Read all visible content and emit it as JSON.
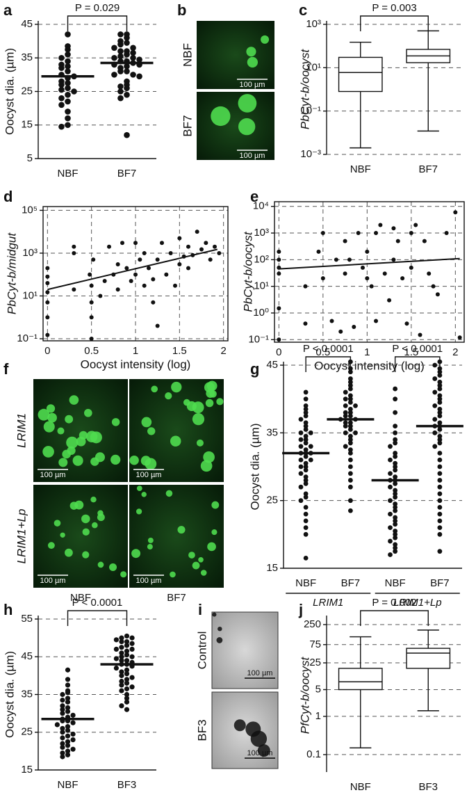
{
  "chart_data": [
    {
      "type": "dot",
      "panel": "a",
      "ylabel": "Oocyst dia. (µm)",
      "categories": [
        "NBF",
        "BF7"
      ],
      "values": [
        [
          42,
          38.5,
          37.5,
          36,
          35,
          34,
          33,
          32.5,
          32,
          31,
          30,
          29.5,
          29,
          28,
          27.5,
          27,
          26,
          25.5,
          25,
          24,
          23,
          22,
          21,
          19,
          17,
          15,
          14.5
        ],
        [
          42,
          42,
          41,
          40,
          39.5,
          39,
          38,
          38,
          37,
          37,
          36.5,
          36,
          35.5,
          35,
          35,
          34.5,
          34,
          34,
          33.5,
          33,
          33,
          32.5,
          32,
          31,
          31,
          30,
          30,
          29.5,
          28,
          27,
          26.5,
          26,
          25,
          24,
          23,
          12
        ]
      ],
      "medians": [
        29.5,
        33.5
      ],
      "annotations": [
        "P = 0.029"
      ],
      "ylim": [
        5,
        45
      ],
      "yticks": [
        5,
        15,
        25,
        35,
        45
      ],
      "grid": true,
      "color": "#111111"
    },
    {
      "type": "box",
      "panel": "c",
      "ylabel": "PbCyt-b/oocyst",
      "categories": [
        "NBF",
        "BF7"
      ],
      "boxes": [
        [
          0.002,
          0.8,
          6,
          30,
          150
        ],
        [
          0.012,
          17,
          35,
          70,
          500
        ]
      ],
      "annotations": [
        "P = 0.003"
      ],
      "log_y": true,
      "ylim": [
        0.001,
        1000
      ],
      "yticks": [
        {
          "value": 0.001,
          "label": "10⁻³"
        },
        {
          "value": 0.1,
          "label": "10⁻¹"
        },
        {
          "value": 10,
          "label": "10¹"
        },
        {
          "value": 1000,
          "label": "10³"
        }
      ],
      "grid": true,
      "color": "#111111"
    },
    {
      "type": "scatter",
      "panel": "d",
      "ylabel": "PbCyt-b/midgut",
      "xlabel": "Oocyst intensity (log)",
      "x": [
        0,
        0,
        0,
        0,
        0,
        0,
        0,
        0.3,
        0.3,
        0.3,
        0.48,
        0.5,
        0.5,
        0.5,
        0.5,
        0.52,
        0.6,
        0.65,
        0.7,
        0.75,
        0.8,
        0.8,
        0.85,
        0.9,
        0.95,
        1,
        1,
        1.05,
        1.1,
        1.1,
        1.15,
        1.2,
        1.2,
        1.25,
        1.25,
        1.3,
        1.35,
        1.4,
        1.45,
        1.5,
        1.5,
        1.55,
        1.6,
        1.6,
        1.65,
        1.7,
        1.75,
        1.8,
        1.85,
        1.9,
        1.95
      ],
      "y": [
        0.15,
        1,
        5,
        15,
        40,
        80,
        200,
        20,
        1000,
        2000,
        100,
        0.1,
        1,
        5,
        30,
        500,
        10,
        50,
        2000,
        100,
        300,
        20,
        3000,
        200,
        50,
        100,
        3000,
        500,
        30,
        1000,
        200,
        60,
        5,
        500,
        0.4,
        3000,
        100,
        1000,
        30,
        300,
        5000,
        700,
        2000,
        200,
        800,
        10000,
        1500,
        3000,
        500,
        2000,
        1000
      ],
      "fit_x": [
        0,
        1.93
      ],
      "fit_y": [
        20,
        1500
      ],
      "log_y": true,
      "xlim": [
        -0.05,
        2.05
      ],
      "xticks": [
        0,
        0.5,
        1,
        1.5,
        2
      ],
      "ylim": [
        0.08,
        150000
      ],
      "yticks": [
        {
          "value": 0.1,
          "label": "10⁻¹"
        },
        {
          "value": 10,
          "label": "10¹"
        },
        {
          "value": 1000,
          "label": "10³"
        },
        {
          "value": 100000,
          "label": "10⁵"
        }
      ],
      "grid": true,
      "color": "#111111"
    },
    {
      "type": "scatter",
      "panel": "e",
      "ylabel": "PbCyt-b/oocyst",
      "xlabel": "Oocyst intensity (log)",
      "x": [
        0,
        0,
        0,
        0,
        0,
        0,
        0.3,
        0.3,
        0.45,
        0.5,
        0.5,
        0.6,
        0.65,
        0.7,
        0.75,
        0.75,
        0.8,
        0.85,
        0.9,
        0.95,
        1,
        1,
        1.05,
        1.1,
        1.1,
        1.15,
        1.2,
        1.25,
        1.3,
        1.3,
        1.35,
        1.4,
        1.45,
        1.5,
        1.5,
        1.55,
        1.6,
        1.65,
        1.7,
        1.75,
        1.8,
        1.9,
        2,
        2.05
      ],
      "y": [
        1.5,
        30,
        100,
        200,
        0.1,
        50,
        0.4,
        10,
        200,
        20,
        1000,
        0.5,
        100,
        0.2,
        30,
        500,
        100,
        0.3,
        1000,
        50,
        20,
        200,
        10,
        1000,
        0.5,
        2000,
        30,
        3,
        1500,
        100,
        500,
        20,
        0.4,
        1000,
        50,
        2000,
        0.15,
        500,
        30,
        10,
        5,
        1000,
        6000,
        0.12
      ],
      "fit_x": [
        0,
        2.05
      ],
      "fit_y": [
        45,
        110
      ],
      "log_y": true,
      "xlim": [
        -0.05,
        2.1
      ],
      "xticks": [
        0,
        0.5,
        1,
        1.5,
        2
      ],
      "ylim": [
        0.08,
        15000
      ],
      "yticks": [
        {
          "value": 0.1,
          "label": "10⁻¹"
        },
        {
          "value": 1,
          "label": "10⁰"
        },
        {
          "value": 10,
          "label": "10¹"
        },
        {
          "value": 100,
          "label": "10²"
        },
        {
          "value": 1000,
          "label": "10³"
        },
        {
          "value": 10000,
          "label": "10⁴"
        }
      ],
      "grid": true,
      "color": "#111111"
    },
    {
      "type": "dot",
      "panel": "g",
      "ylabel": "Oocyst dia. (µm)",
      "categories": [
        "NBF",
        "BF7",
        "NBF",
        "BF7"
      ],
      "group_labels": [
        "LRIM1",
        "LRIM1+Lp"
      ],
      "values": [
        [
          41,
          40,
          39,
          38.5,
          38,
          37.5,
          37,
          36.5,
          36,
          35.5,
          35,
          35,
          34.5,
          34,
          34,
          33.5,
          33,
          33,
          32.5,
          32,
          32,
          32,
          31.5,
          31,
          31,
          30.5,
          30,
          30,
          29.5,
          29,
          28.5,
          28,
          27.5,
          27,
          26,
          25.5,
          25,
          24,
          23,
          22,
          21,
          20,
          16.5
        ],
        [
          45.5,
          44.5,
          44,
          43,
          42.5,
          42,
          41.5,
          41,
          40.5,
          40,
          40,
          39.5,
          39,
          39,
          38.5,
          38,
          38,
          37.5,
          37.5,
          37,
          37,
          36.5,
          36.5,
          36,
          36,
          35.5,
          35,
          35,
          34.5,
          34,
          33.5,
          33,
          32.5,
          32,
          31,
          30,
          29,
          28,
          27,
          25,
          23.5
        ],
        [
          41.5,
          40,
          38,
          36,
          35,
          34,
          33.5,
          33,
          32,
          31.5,
          31,
          30.5,
          30,
          29.5,
          29,
          28.5,
          28,
          28,
          27.5,
          27,
          26.5,
          26,
          25.5,
          25,
          24.5,
          24,
          23.5,
          23,
          22.5,
          22,
          21.5,
          21,
          20.5,
          20,
          19.5,
          19,
          18.5,
          18,
          17.5,
          17
        ],
        [
          45.5,
          45,
          44.5,
          44,
          43.5,
          43,
          42.5,
          42,
          41.5,
          41,
          40.5,
          40,
          39.5,
          39,
          38.5,
          38,
          37.5,
          37,
          36.5,
          36,
          36,
          35.5,
          35,
          34.5,
          34,
          33.5,
          33,
          32,
          31,
          30,
          29,
          28,
          27,
          26,
          25,
          24,
          23,
          22,
          21,
          20,
          17.5
        ]
      ],
      "medians": [
        32,
        37,
        28,
        36
      ],
      "annotations": [
        "P < 0.0001",
        "P < 0.0001"
      ],
      "ylim": [
        15,
        45
      ],
      "yticks": [
        15,
        25,
        35,
        45
      ],
      "grid": true,
      "color": "#111111"
    },
    {
      "type": "dot",
      "panel": "h",
      "ylabel": "Oocyst dia. (µm)",
      "categories": [
        "NBF",
        "BF3"
      ],
      "values": [
        [
          41.5,
          39,
          37.5,
          36,
          35.5,
          35,
          34,
          33.5,
          33,
          32,
          31.5,
          31,
          30.5,
          30,
          29.5,
          29,
          28.5,
          28,
          28,
          27.5,
          27,
          26.5,
          26,
          25.5,
          25,
          24.5,
          24,
          23.5,
          23,
          22.5,
          22,
          21.5,
          21,
          20.5,
          20,
          19.5,
          19,
          18.5
        ],
        [
          50.5,
          50,
          50,
          49.5,
          49,
          49,
          48.5,
          48,
          47.5,
          47,
          47,
          46.5,
          46,
          45.5,
          45,
          45,
          44.5,
          44,
          44,
          43.5,
          43,
          43,
          42.5,
          42,
          41.5,
          41,
          40.5,
          40,
          39.5,
          39,
          38.5,
          38,
          37.5,
          37,
          36.5,
          36,
          35,
          34,
          33,
          32,
          31
        ]
      ],
      "medians": [
        28.5,
        43
      ],
      "annotations": [
        "P < 0.0001"
      ],
      "ylim": [
        15,
        55
      ],
      "yticks": [
        15,
        25,
        35,
        45,
        55
      ],
      "grid": true,
      "color": "#111111"
    },
    {
      "type": "box",
      "panel": "j",
      "ylabel": "PfCyt-b/oocyst",
      "categories": [
        "NBF",
        "BF3"
      ],
      "boxes": [
        [
          0.15,
          5,
          8,
          18,
          120
        ],
        [
          1.4,
          18,
          45,
          60,
          180
        ]
      ],
      "annotations": [
        "P = 0.002"
      ],
      "log_y": true,
      "ylim": [
        0.035,
        350
      ],
      "yticks": [
        0.1,
        1,
        5,
        25,
        75,
        250
      ],
      "grid": true,
      "color": "#111111"
    }
  ],
  "images": [
    {
      "panel": "b",
      "rows": [
        "NBF",
        "BF7"
      ],
      "scale_bar": "100 µm"
    },
    {
      "panel": "f",
      "rows": [
        "LRIM1",
        "LRIM1+Lp"
      ],
      "columns": [
        "NBF",
        "BF7"
      ],
      "scale_bar": "100 µm"
    },
    {
      "panel": "i",
      "rows": [
        "Control",
        "BF3"
      ],
      "scale_bar": "100 µm"
    }
  ]
}
